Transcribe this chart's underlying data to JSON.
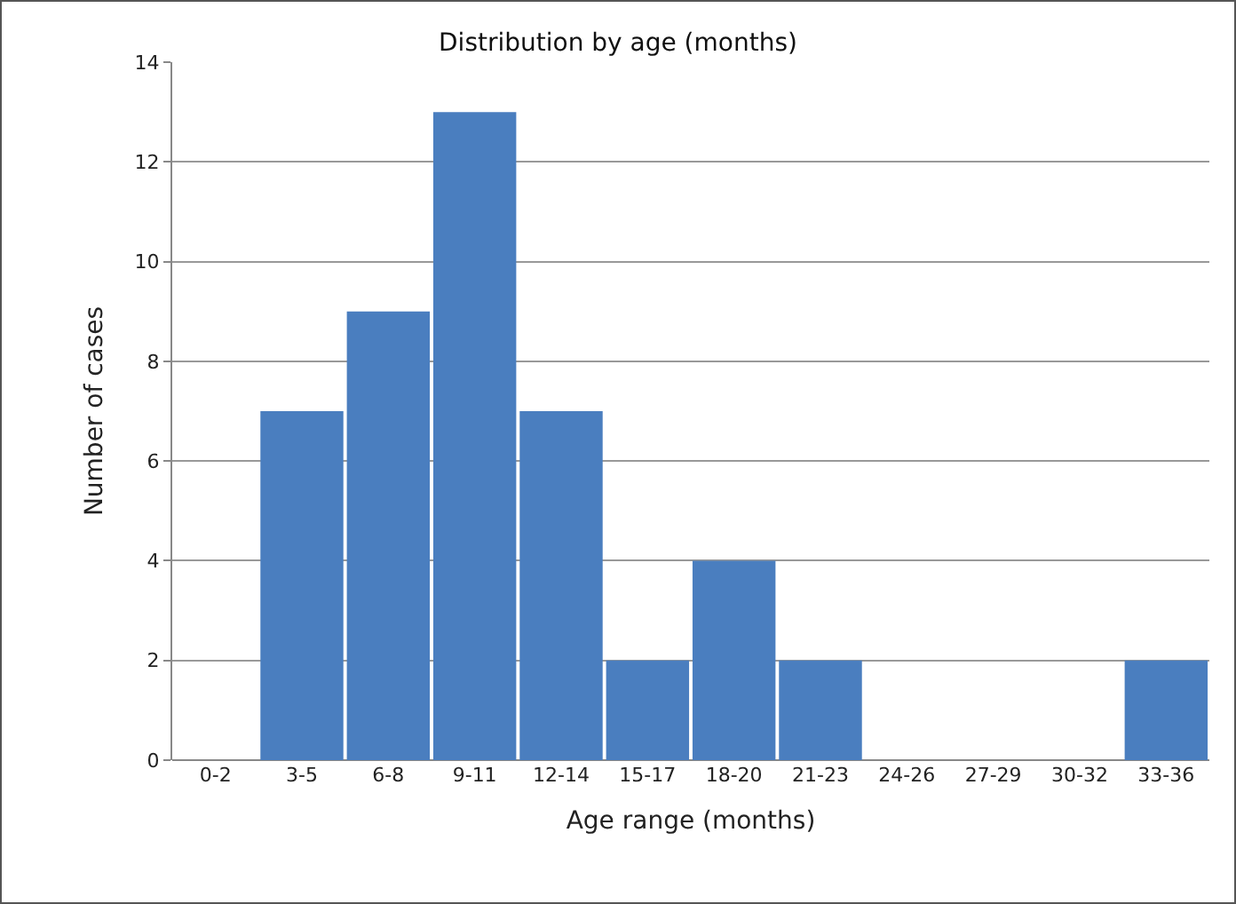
{
  "chart_data": {
    "type": "bar",
    "title": "Distribution by age (months)",
    "xlabel": "Age range (months)",
    "ylabel": "Number of cases",
    "categories": [
      "0-2",
      "3-5",
      "6-8",
      "9-11",
      "12-14",
      "15-17",
      "18-20",
      "21-23",
      "24-26",
      "27-29",
      "30-32",
      "33-36"
    ],
    "values": [
      0,
      7,
      9,
      13,
      7,
      2,
      4,
      2,
      0,
      0,
      0,
      2
    ],
    "color": "#4a7ebf",
    "ylim": [
      0,
      14
    ],
    "yticks": [
      0,
      2,
      4,
      6,
      8,
      10,
      12,
      14
    ],
    "grid": "y"
  }
}
